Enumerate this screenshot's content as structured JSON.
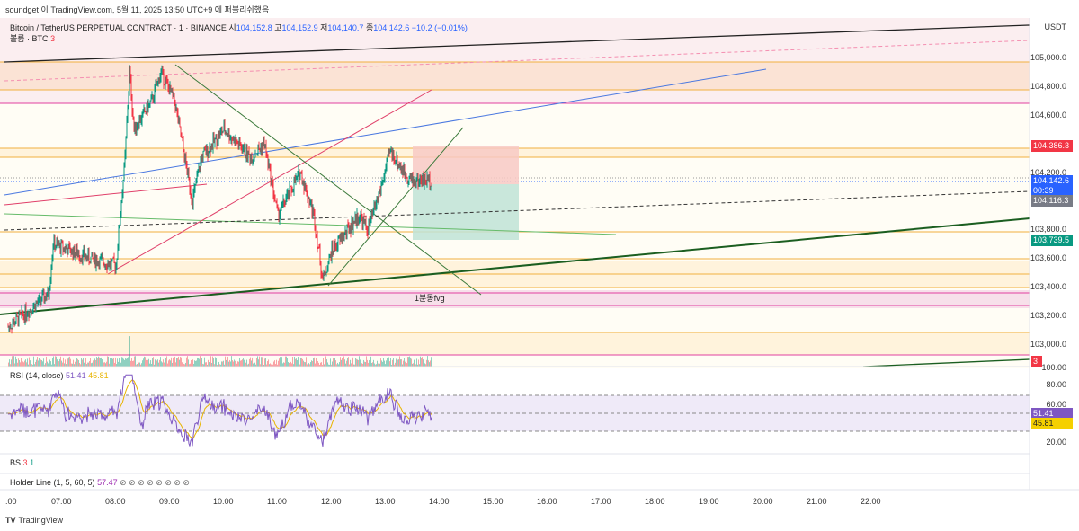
{
  "publish_note": "soundget 이 TradingView.com, 5월 11, 2025 13:50 UTC+9 에 퍼블리쉬했음",
  "symbol": {
    "title": "Bitcoin / TetherUS PERPETUAL CONTRACT · 1 · BINANCE",
    "o_label": "시",
    "o": "104,152.8",
    "h_label": "고",
    "h": "104,152.9",
    "l_label": "저",
    "l": "104,140.7",
    "c_label": "종",
    "c": "104,142.6",
    "change": "−10.2 (−0.01%)"
  },
  "volume": {
    "label": "볼륨 · BTC",
    "value": "3"
  },
  "currency": "USDT",
  "price_axis": [
    "105,000.0",
    "104,800.0",
    "104,600.0",
    "104,200.0",
    "103,800.0",
    "103,600.0",
    "103,400.0",
    "103,200.0",
    "103,000.0"
  ],
  "tags": {
    "red": "104,386.3",
    "current": "104,142.6",
    "countdown": "00:39",
    "gray": "104,116.3",
    "green": "103,739.5",
    "vol": "3"
  },
  "annotation": "1분동fvg",
  "rsi": {
    "label": "RSI (14, close)",
    "value": "51.41",
    "ma": "45.81",
    "axis": [
      "100.00",
      "80.00",
      "60.00",
      "20.00"
    ]
  },
  "bs": {
    "label": "BS",
    "a": "3",
    "b": "1"
  },
  "holder": {
    "label": "Holder Line (1, 5, 60, 5)",
    "value": "57.47",
    "icons": "⊘ ⊘ ⊘ ⊘ ⊘ ⊘ ⊘ ⊘"
  },
  "time_axis": [
    ":00",
    "07:00",
    "08:00",
    "09:00",
    "10:00",
    "11:00",
    "12:00",
    "13:00",
    "14:00",
    "15:00",
    "16:00",
    "17:00",
    "18:00",
    "19:00",
    "20:00",
    "21:00",
    "22:00"
  ],
  "brand": "TradingView",
  "colors": {
    "up": "#089981",
    "down": "#f23645",
    "rsi": "#7e57c2",
    "rsi_ma": "#e8b400"
  }
}
